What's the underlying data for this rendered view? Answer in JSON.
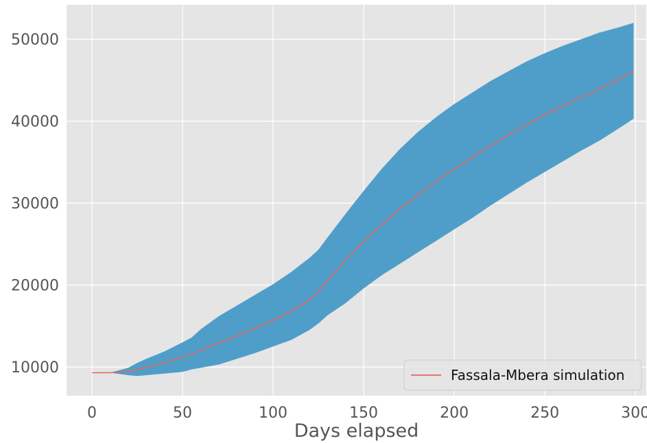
{
  "chart_data": {
    "type": "area",
    "xlabel": "Days elapsed",
    "ylabel": "",
    "xlim": [
      -14,
      306
    ],
    "ylim": [
      6500,
      54200
    ],
    "xticks": [
      0,
      50,
      100,
      150,
      200,
      250,
      300
    ],
    "yticks": [
      10000,
      20000,
      30000,
      40000,
      50000
    ],
    "grid": true,
    "legend_position": "lower-right",
    "colors": {
      "background": "#e5e5e5",
      "grid": "#ffffff",
      "band": "#4f9ec9",
      "line": "#e2675a",
      "tick": "#555555"
    },
    "series": [
      {
        "name": "Fassala-Mbera simulation",
        "kind": "line",
        "x": [
          0,
          10,
          20,
          30,
          40,
          50,
          60,
          70,
          80,
          90,
          100,
          110,
          120,
          125,
          130,
          140,
          150,
          160,
          170,
          180,
          190,
          200,
          210,
          220,
          230,
          240,
          250,
          260,
          270,
          280,
          290,
          299
        ],
        "y": [
          9300,
          9300,
          9500,
          9950,
          10500,
          11200,
          12000,
          12900,
          13800,
          14700,
          15700,
          16800,
          18200,
          19200,
          20600,
          23000,
          25300,
          27400,
          29300,
          31000,
          32600,
          34200,
          35600,
          37000,
          38300,
          39600,
          40800,
          41900,
          42900,
          43900,
          45000,
          46100
        ]
      },
      {
        "name": "",
        "kind": "band",
        "x": [
          0,
          10,
          20,
          25,
          30,
          40,
          50,
          55,
          60,
          70,
          80,
          90,
          100,
          110,
          120,
          125,
          130,
          140,
          150,
          160,
          170,
          180,
          190,
          200,
          210,
          220,
          230,
          240,
          250,
          260,
          270,
          280,
          290,
          299
        ],
        "upper": [
          9300,
          9300,
          9900,
          10500,
          11000,
          11900,
          13000,
          13600,
          14600,
          16200,
          17500,
          18800,
          20100,
          21600,
          23300,
          24300,
          25800,
          28700,
          31500,
          34200,
          36600,
          38700,
          40500,
          42100,
          43500,
          44900,
          46100,
          47300,
          48300,
          49200,
          50000,
          50800,
          51400,
          52000
        ],
        "lower": [
          9300,
          9300,
          9000,
          8900,
          9000,
          9200,
          9400,
          9700,
          9900,
          10300,
          11000,
          11700,
          12500,
          13300,
          14500,
          15300,
          16300,
          17800,
          19600,
          21200,
          22600,
          24000,
          25400,
          26800,
          28200,
          29700,
          31100,
          32500,
          33800,
          35100,
          36400,
          37600,
          39000,
          40300
        ]
      }
    ]
  }
}
